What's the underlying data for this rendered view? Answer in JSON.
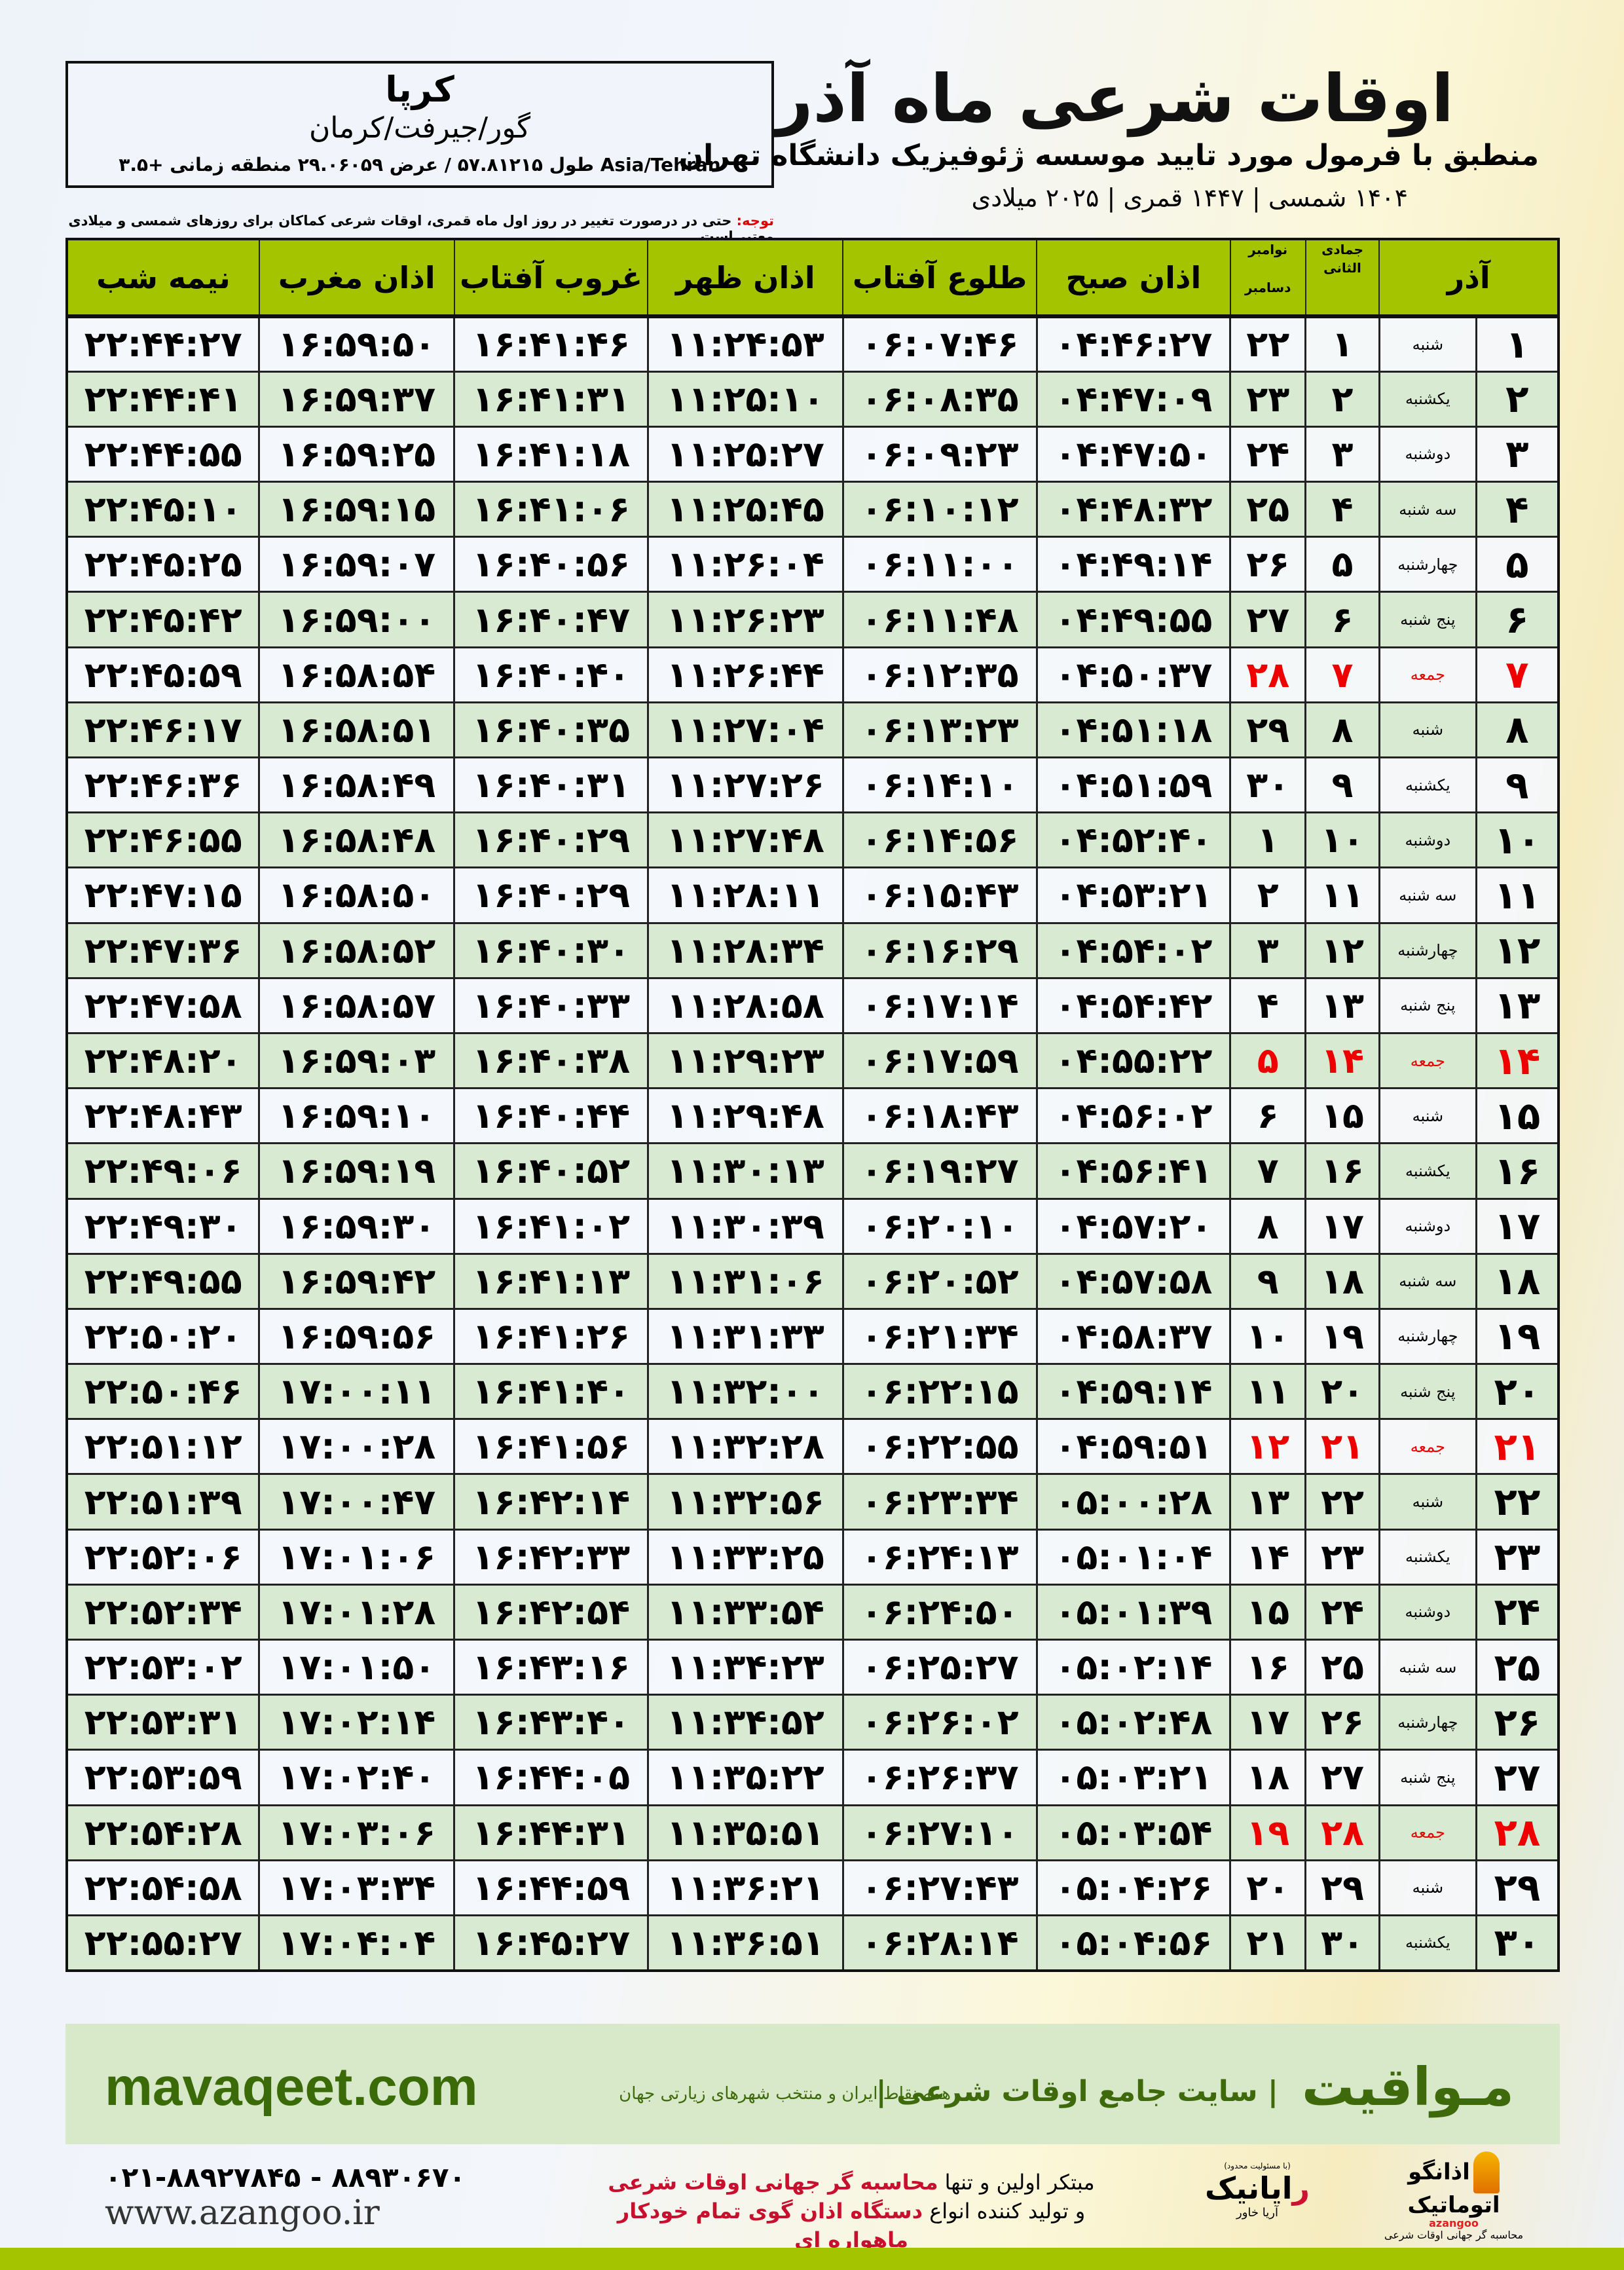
{
  "header": {
    "title": "اوقات شرعی ماه آذر",
    "subtitle": "منطبق با فرمول مورد تایید موسسه ژئوفیزیک دانشگاه تهران",
    "dates": "۱۴۰۴ شمسی | ۱۴۴۷ قمری | ۲۰۲۵ میلادی"
  },
  "location": {
    "city": "کرپا",
    "region": "گور/جیرفت/کرمان",
    "coords": "طول ۵۷.۸۱۲۱۵ / عرض ۲۹.۰۶۰۵۹ منطقه زمانی +۳.۵ Asia/Tehran"
  },
  "note": {
    "label": "توجه:",
    "text": " حتی در درصورت تغییر در روز اول ماه قمری، اوقات شرعی کماکان برای روزهای شمسی و میلادی معتبر است."
  },
  "columns": {
    "azar": "آذر",
    "jumada": "جمادی الثانی",
    "november": "نوامبر",
    "december": "دسامبر",
    "fajr": "اذان صبح",
    "sunrise": "طلوع آفتاب",
    "dhuhr": "اذان ظهر",
    "sunset": "غروب آفتاب",
    "maghrib": "اذان مغرب",
    "midnight": "نیمه شب"
  },
  "friday_color": "#e00000",
  "header_color": "#a5c400",
  "alt_row_color": "#d9ead3",
  "rows": [
    [
      "۱",
      "شنبه",
      "۱",
      "۲۲",
      "۰۴:۴۶:۲۷",
      "۰۶:۰۷:۴۶",
      "۱۱:۲۴:۵۳",
      "۱۶:۴۱:۴۶",
      "۱۶:۵۹:۵۰",
      "۲۲:۴۴:۲۷"
    ],
    [
      "۲",
      "یکشنبه",
      "۲",
      "۲۳",
      "۰۴:۴۷:۰۹",
      "۰۶:۰۸:۳۵",
      "۱۱:۲۵:۱۰",
      "۱۶:۴۱:۳۱",
      "۱۶:۵۹:۳۷",
      "۲۲:۴۴:۴۱"
    ],
    [
      "۳",
      "دوشنبه",
      "۳",
      "۲۴",
      "۰۴:۴۷:۵۰",
      "۰۶:۰۹:۲۳",
      "۱۱:۲۵:۲۷",
      "۱۶:۴۱:۱۸",
      "۱۶:۵۹:۲۵",
      "۲۲:۴۴:۵۵"
    ],
    [
      "۴",
      "سه شنبه",
      "۴",
      "۲۵",
      "۰۴:۴۸:۳۲",
      "۰۶:۱۰:۱۲",
      "۱۱:۲۵:۴۵",
      "۱۶:۴۱:۰۶",
      "۱۶:۵۹:۱۵",
      "۲۲:۴۵:۱۰"
    ],
    [
      "۵",
      "چهارشنبه",
      "۵",
      "۲۶",
      "۰۴:۴۹:۱۴",
      "۰۶:۱۱:۰۰",
      "۱۱:۲۶:۰۴",
      "۱۶:۴۰:۵۶",
      "۱۶:۵۹:۰۷",
      "۲۲:۴۵:۲۵"
    ],
    [
      "۶",
      "پنج شنبه",
      "۶",
      "۲۷",
      "۰۴:۴۹:۵۵",
      "۰۶:۱۱:۴۸",
      "۱۱:۲۶:۲۳",
      "۱۶:۴۰:۴۷",
      "۱۶:۵۹:۰۰",
      "۲۲:۴۵:۴۲"
    ],
    [
      "۷",
      "جمعه",
      "۷",
      "۲۸",
      "۰۴:۵۰:۳۷",
      "۰۶:۱۲:۳۵",
      "۱۱:۲۶:۴۴",
      "۱۶:۴۰:۴۰",
      "۱۶:۵۸:۵۴",
      "۲۲:۴۵:۵۹"
    ],
    [
      "۸",
      "شنبه",
      "۸",
      "۲۹",
      "۰۴:۵۱:۱۸",
      "۰۶:۱۳:۲۳",
      "۱۱:۲۷:۰۴",
      "۱۶:۴۰:۳۵",
      "۱۶:۵۸:۵۱",
      "۲۲:۴۶:۱۷"
    ],
    [
      "۹",
      "یکشنبه",
      "۹",
      "۳۰",
      "۰۴:۵۱:۵۹",
      "۰۶:۱۴:۱۰",
      "۱۱:۲۷:۲۶",
      "۱۶:۴۰:۳۱",
      "۱۶:۵۸:۴۹",
      "۲۲:۴۶:۳۶"
    ],
    [
      "۱۰",
      "دوشنبه",
      "۱۰",
      "۱",
      "۰۴:۵۲:۴۰",
      "۰۶:۱۴:۵۶",
      "۱۱:۲۷:۴۸",
      "۱۶:۴۰:۲۹",
      "۱۶:۵۸:۴۸",
      "۲۲:۴۶:۵۵"
    ],
    [
      "۱۱",
      "سه شنبه",
      "۱۱",
      "۲",
      "۰۴:۵۳:۲۱",
      "۰۶:۱۵:۴۳",
      "۱۱:۲۸:۱۱",
      "۱۶:۴۰:۲۹",
      "۱۶:۵۸:۵۰",
      "۲۲:۴۷:۱۵"
    ],
    [
      "۱۲",
      "چهارشنبه",
      "۱۲",
      "۳",
      "۰۴:۵۴:۰۲",
      "۰۶:۱۶:۲۹",
      "۱۱:۲۸:۳۴",
      "۱۶:۴۰:۳۰",
      "۱۶:۵۸:۵۲",
      "۲۲:۴۷:۳۶"
    ],
    [
      "۱۳",
      "پنج شنبه",
      "۱۳",
      "۴",
      "۰۴:۵۴:۴۲",
      "۰۶:۱۷:۱۴",
      "۱۱:۲۸:۵۸",
      "۱۶:۴۰:۳۳",
      "۱۶:۵۸:۵۷",
      "۲۲:۴۷:۵۸"
    ],
    [
      "۱۴",
      "جمعه",
      "۱۴",
      "۵",
      "۰۴:۵۵:۲۲",
      "۰۶:۱۷:۵۹",
      "۱۱:۲۹:۲۳",
      "۱۶:۴۰:۳۸",
      "۱۶:۵۹:۰۳",
      "۲۲:۴۸:۲۰"
    ],
    [
      "۱۵",
      "شنبه",
      "۱۵",
      "۶",
      "۰۴:۵۶:۰۲",
      "۰۶:۱۸:۴۳",
      "۱۱:۲۹:۴۸",
      "۱۶:۴۰:۴۴",
      "۱۶:۵۹:۱۰",
      "۲۲:۴۸:۴۳"
    ],
    [
      "۱۶",
      "یکشنبه",
      "۱۶",
      "۷",
      "۰۴:۵۶:۴۱",
      "۰۶:۱۹:۲۷",
      "۱۱:۳۰:۱۳",
      "۱۶:۴۰:۵۲",
      "۱۶:۵۹:۱۹",
      "۲۲:۴۹:۰۶"
    ],
    [
      "۱۷",
      "دوشنبه",
      "۱۷",
      "۸",
      "۰۴:۵۷:۲۰",
      "۰۶:۲۰:۱۰",
      "۱۱:۳۰:۳۹",
      "۱۶:۴۱:۰۲",
      "۱۶:۵۹:۳۰",
      "۲۲:۴۹:۳۰"
    ],
    [
      "۱۸",
      "سه شنبه",
      "۱۸",
      "۹",
      "۰۴:۵۷:۵۸",
      "۰۶:۲۰:۵۲",
      "۱۱:۳۱:۰۶",
      "۱۶:۴۱:۱۳",
      "۱۶:۵۹:۴۲",
      "۲۲:۴۹:۵۵"
    ],
    [
      "۱۹",
      "چهارشنبه",
      "۱۹",
      "۱۰",
      "۰۴:۵۸:۳۷",
      "۰۶:۲۱:۳۴",
      "۱۱:۳۱:۳۳",
      "۱۶:۴۱:۲۶",
      "۱۶:۵۹:۵۶",
      "۲۲:۵۰:۲۰"
    ],
    [
      "۲۰",
      "پنج شنبه",
      "۲۰",
      "۱۱",
      "۰۴:۵۹:۱۴",
      "۰۶:۲۲:۱۵",
      "۱۱:۳۲:۰۰",
      "۱۶:۴۱:۴۰",
      "۱۷:۰۰:۱۱",
      "۲۲:۵۰:۴۶"
    ],
    [
      "۲۱",
      "جمعه",
      "۲۱",
      "۱۲",
      "۰۴:۵۹:۵۱",
      "۰۶:۲۲:۵۵",
      "۱۱:۳۲:۲۸",
      "۱۶:۴۱:۵۶",
      "۱۷:۰۰:۲۸",
      "۲۲:۵۱:۱۲"
    ],
    [
      "۲۲",
      "شنبه",
      "۲۲",
      "۱۳",
      "۰۵:۰۰:۲۸",
      "۰۶:۲۳:۳۴",
      "۱۱:۳۲:۵۶",
      "۱۶:۴۲:۱۴",
      "۱۷:۰۰:۴۷",
      "۲۲:۵۱:۳۹"
    ],
    [
      "۲۳",
      "یکشنبه",
      "۲۳",
      "۱۴",
      "۰۵:۰۱:۰۴",
      "۰۶:۲۴:۱۳",
      "۱۱:۳۳:۲۵",
      "۱۶:۴۲:۳۳",
      "۱۷:۰۱:۰۶",
      "۲۲:۵۲:۰۶"
    ],
    [
      "۲۴",
      "دوشنبه",
      "۲۴",
      "۱۵",
      "۰۵:۰۱:۳۹",
      "۰۶:۲۴:۵۰",
      "۱۱:۳۳:۵۴",
      "۱۶:۴۲:۵۴",
      "۱۷:۰۱:۲۸",
      "۲۲:۵۲:۳۴"
    ],
    [
      "۲۵",
      "سه شنبه",
      "۲۵",
      "۱۶",
      "۰۵:۰۲:۱۴",
      "۰۶:۲۵:۲۷",
      "۱۱:۳۴:۲۳",
      "۱۶:۴۳:۱۶",
      "۱۷:۰۱:۵۰",
      "۲۲:۵۳:۰۲"
    ],
    [
      "۲۶",
      "چهارشنبه",
      "۲۶",
      "۱۷",
      "۰۵:۰۲:۴۸",
      "۰۶:۲۶:۰۲",
      "۱۱:۳۴:۵۲",
      "۱۶:۴۳:۴۰",
      "۱۷:۰۲:۱۴",
      "۲۲:۵۳:۳۱"
    ],
    [
      "۲۷",
      "پنج شنبه",
      "۲۷",
      "۱۸",
      "۰۵:۰۳:۲۱",
      "۰۶:۲۶:۳۷",
      "۱۱:۳۵:۲۲",
      "۱۶:۴۴:۰۵",
      "۱۷:۰۲:۴۰",
      "۲۲:۵۳:۵۹"
    ],
    [
      "۲۸",
      "جمعه",
      "۲۸",
      "۱۹",
      "۰۵:۰۳:۵۴",
      "۰۶:۲۷:۱۰",
      "۱۱:۳۵:۵۱",
      "۱۶:۴۴:۳۱",
      "۱۷:۰۳:۰۶",
      "۲۲:۵۴:۲۸"
    ],
    [
      "۲۹",
      "شنبه",
      "۲۹",
      "۲۰",
      "۰۵:۰۴:۲۶",
      "۰۶:۲۷:۴۳",
      "۱۱:۳۶:۲۱",
      "۱۶:۴۴:۵۹",
      "۱۷:۰۳:۳۴",
      "۲۲:۵۴:۵۸"
    ],
    [
      "۳۰",
      "یکشنبه",
      "۳۰",
      "۲۱",
      "۰۵:۰۴:۵۶",
      "۰۶:۲۸:۱۴",
      "۱۱:۳۶:۵۱",
      "۱۶:۴۵:۲۷",
      "۱۷:۰۴:۰۴",
      "۲۲:۵۵:۲۷"
    ]
  ],
  "friday_label": "جمعه",
  "footer": {
    "brand": "مـواقیت",
    "slogan": "| سایت جامع اوقات شرعی |",
    "tagline": "همه نقاط ایران و منتخب شهرهای زیارتی جهان",
    "site": "mavaqeet.com",
    "logo1_name": "اذانگو اتوماتیک",
    "logo1_en": "azangoo",
    "logo1_sub": "محاسبه گر جهانی اوقات شرعی",
    "logo2_small": "(با مسئولیت محدود)",
    "logo2_name_red": "ر",
    "logo2_name": "ایانیک",
    "logo2_sub": "آریا خاور",
    "line1_a": "مبتکر اولین و تنها ",
    "line1_b": "محاسبه گر جهانی اوقات شرعی",
    "line2_a": "و تولید کننده انواع ",
    "line2_b": "دستگاه اذان گوی تمام خودکار ماهواره ای",
    "phone": "۰۲۱-۸۸۹۲۷۸۴۵ - ۸۸۹۳۰۶۷۰",
    "www": "www.azangoo.ir"
  }
}
